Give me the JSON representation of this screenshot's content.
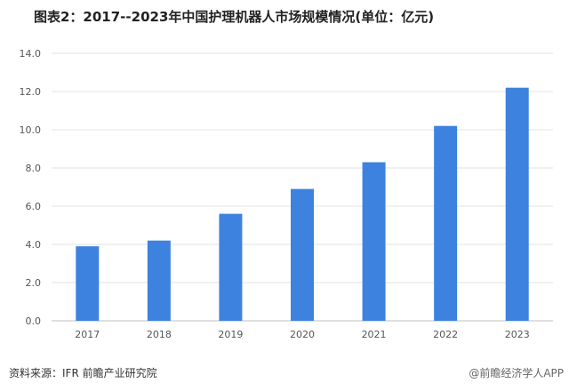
{
  "title": "图表2：2017--2023年中国护理机器人市场规模情况(单位：亿元)",
  "source": "资料来源：IFR 前瞻产业研究院",
  "footer_mark": "@前瞻经济学人APP",
  "colors": {
    "bar": "#3d82df",
    "grid": "#e3e3e3",
    "axis": "#bfbfbf"
  },
  "chart_data": {
    "type": "bar",
    "categories": [
      "2017",
      "2018",
      "2019",
      "2020",
      "2021",
      "2022",
      "2023"
    ],
    "values": [
      3.9,
      4.2,
      5.6,
      6.9,
      8.3,
      10.2,
      12.2
    ],
    "ylim": [
      0,
      14
    ],
    "yticks": [
      "0.0",
      "2.0",
      "4.0",
      "6.0",
      "8.0",
      "10.0",
      "12.0",
      "14.0"
    ],
    "grid": true,
    "legend": false
  }
}
